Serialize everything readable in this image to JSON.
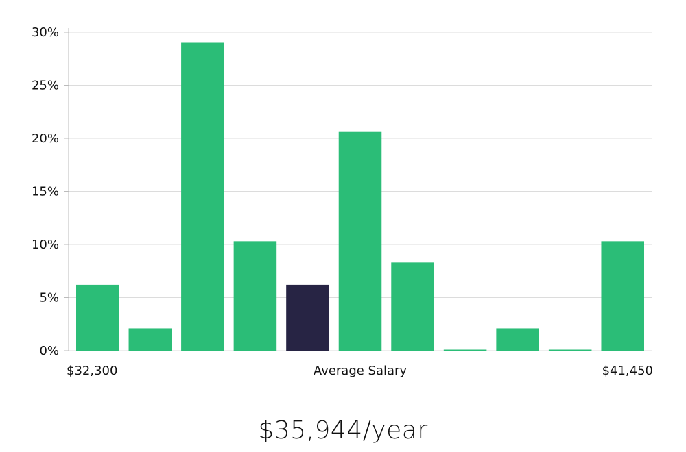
{
  "colors": {
    "bar": "#2bbd77",
    "highlight": "#272444",
    "grid": "#dcdcdc",
    "axis": "#bbbbbb",
    "text": "#111111"
  },
  "headline": "$35,944/year",
  "chart_data": {
    "type": "bar",
    "title": "",
    "x_min_label": "$32,300",
    "x_center_label": "Average Salary",
    "x_max_label": "$41,450",
    "ylim": [
      0,
      30
    ],
    "yticks": [
      0,
      5,
      10,
      15,
      20,
      25,
      30
    ],
    "ytick_labels": [
      "0%",
      "5%",
      "10%",
      "15%",
      "20%",
      "25%",
      "30%"
    ],
    "values": [
      6.2,
      2.1,
      29,
      10.3,
      6.2,
      20.6,
      8.3,
      0,
      2.1,
      0,
      10.3
    ],
    "highlight_index": 4,
    "grid": true
  }
}
